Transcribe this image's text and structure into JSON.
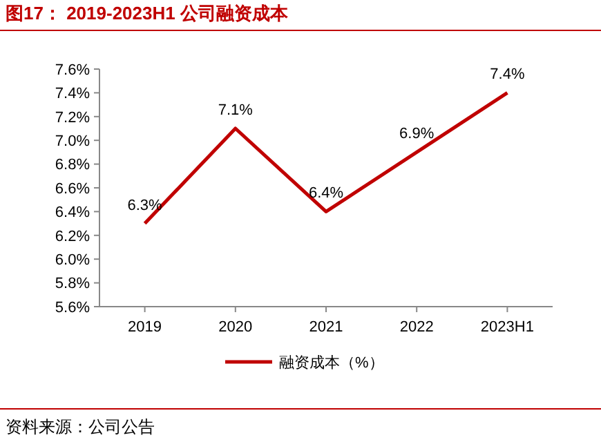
{
  "chart_data": {
    "type": "line",
    "title": "图17：  2019-2023H1 公司融资成本",
    "categories": [
      "2019",
      "2020",
      "2021",
      "2022",
      "2023H1"
    ],
    "series": [
      {
        "name": "融资成本（%）",
        "color": "#c00000",
        "values": [
          6.3,
          7.1,
          6.4,
          6.9,
          7.4
        ],
        "value_labels": [
          "6.3%",
          "7.1%",
          "6.4%",
          "6.9%",
          "7.4%"
        ]
      }
    ],
    "ylim": [
      5.6,
      7.6
    ],
    "yticks": [
      {
        "value": 5.6,
        "label": "5.6%"
      },
      {
        "value": 5.8,
        "label": "5.8%"
      },
      {
        "value": 6.0,
        "label": "6.0%"
      },
      {
        "value": 6.2,
        "label": "6.2%"
      },
      {
        "value": 6.4,
        "label": "6.4%"
      },
      {
        "value": 6.6,
        "label": "6.6%"
      },
      {
        "value": 6.8,
        "label": "6.8%"
      },
      {
        "value": 7.0,
        "label": "7.0%"
      },
      {
        "value": 7.2,
        "label": "7.2%"
      },
      {
        "value": 7.4,
        "label": "7.4%"
      },
      {
        "value": 7.6,
        "label": "7.6%"
      }
    ],
    "grid": false,
    "legend": "bottom",
    "marker": "none",
    "line_style": "solid",
    "annotations": [
      "资料来源：公司公告"
    ]
  }
}
